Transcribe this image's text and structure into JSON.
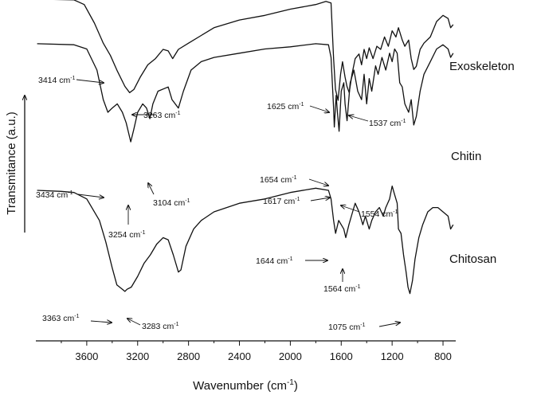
{
  "chart_data": {
    "type": "line",
    "title": "",
    "xlabel": "Wavenumber (cm-1)",
    "xlabel_main": "Wavenumber (cm",
    "xlabel_sup": "-1",
    "xlabel_close": ")",
    "ylabel": "Transmitance (a.u.)",
    "xlim": [
      4000,
      700
    ],
    "x_reversed": true,
    "xticks": [
      3600,
      3200,
      2800,
      2400,
      2000,
      1600,
      1200,
      800
    ],
    "grid": false,
    "legend": "series labels at right end of curves",
    "unit_sup": "-1",
    "series": [
      {
        "name": "Exoskeleton",
        "points": [
          [
            3990,
            0.985
          ],
          [
            3700,
            0.98
          ],
          [
            3620,
            0.95
          ],
          [
            3540,
            0.83
          ],
          [
            3470,
            0.7
          ],
          [
            3414,
            0.62
          ],
          [
            3360,
            0.52
          ],
          [
            3300,
            0.42
          ],
          [
            3263,
            0.38
          ],
          [
            3230,
            0.4
          ],
          [
            3180,
            0.48
          ],
          [
            3120,
            0.56
          ],
          [
            3060,
            0.6
          ],
          [
            3000,
            0.66
          ],
          [
            2960,
            0.65
          ],
          [
            2925,
            0.6
          ],
          [
            2880,
            0.66
          ],
          [
            2800,
            0.7
          ],
          [
            2700,
            0.75
          ],
          [
            2600,
            0.8
          ],
          [
            2400,
            0.85
          ],
          [
            2200,
            0.88
          ],
          [
            2000,
            0.92
          ],
          [
            1800,
            0.95
          ],
          [
            1720,
            0.97
          ],
          [
            1680,
            0.96
          ],
          [
            1660,
            0.6
          ],
          [
            1645,
            0.4
          ],
          [
            1625,
            0.33
          ],
          [
            1605,
            0.5
          ],
          [
            1590,
            0.58
          ],
          [
            1570,
            0.48
          ],
          [
            1555,
            0.42
          ],
          [
            1537,
            0.38
          ],
          [
            1515,
            0.5
          ],
          [
            1490,
            0.6
          ],
          [
            1460,
            0.63
          ],
          [
            1440,
            0.56
          ],
          [
            1420,
            0.66
          ],
          [
            1400,
            0.6
          ],
          [
            1380,
            0.67
          ],
          [
            1350,
            0.6
          ],
          [
            1320,
            0.68
          ],
          [
            1290,
            0.66
          ],
          [
            1260,
            0.74
          ],
          [
            1230,
            0.68
          ],
          [
            1200,
            0.78
          ],
          [
            1170,
            0.74
          ],
          [
            1150,
            0.8
          ],
          [
            1120,
            0.72
          ],
          [
            1100,
            0.68
          ],
          [
            1070,
            0.72
          ],
          [
            1050,
            0.6
          ],
          [
            1030,
            0.53
          ],
          [
            1010,
            0.55
          ],
          [
            980,
            0.66
          ],
          [
            950,
            0.7
          ],
          [
            900,
            0.74
          ],
          [
            850,
            0.84
          ],
          [
            800,
            0.88
          ],
          [
            760,
            0.86
          ],
          [
            740,
            0.8
          ],
          [
            720,
            0.82
          ]
        ]
      },
      {
        "name": "Chitin",
        "points": [
          [
            3990,
            0.925
          ],
          [
            3700,
            0.92
          ],
          [
            3600,
            0.9
          ],
          [
            3520,
            0.8
          ],
          [
            3470,
            0.66
          ],
          [
            3434,
            0.6
          ],
          [
            3400,
            0.62
          ],
          [
            3360,
            0.64
          ],
          [
            3320,
            0.6
          ],
          [
            3290,
            0.55
          ],
          [
            3254,
            0.46
          ],
          [
            3230,
            0.52
          ],
          [
            3200,
            0.6
          ],
          [
            3160,
            0.64
          ],
          [
            3130,
            0.62
          ],
          [
            3104,
            0.57
          ],
          [
            3080,
            0.64
          ],
          [
            3040,
            0.7
          ],
          [
            2960,
            0.72
          ],
          [
            2930,
            0.66
          ],
          [
            2880,
            0.62
          ],
          [
            2840,
            0.7
          ],
          [
            2780,
            0.8
          ],
          [
            2700,
            0.84
          ],
          [
            2600,
            0.86
          ],
          [
            2400,
            0.88
          ],
          [
            2200,
            0.9
          ],
          [
            2000,
            0.91
          ],
          [
            1800,
            0.925
          ],
          [
            1700,
            0.92
          ],
          [
            1680,
            0.86
          ],
          [
            1660,
            0.62
          ],
          [
            1654,
            0.53
          ],
          [
            1640,
            0.68
          ],
          [
            1630,
            0.6
          ],
          [
            1617,
            0.51
          ],
          [
            1600,
            0.7
          ],
          [
            1580,
            0.74
          ],
          [
            1570,
            0.64
          ],
          [
            1554,
            0.56
          ],
          [
            1530,
            0.74
          ],
          [
            1500,
            0.8
          ],
          [
            1470,
            0.7
          ],
          [
            1440,
            0.66
          ],
          [
            1420,
            0.78
          ],
          [
            1400,
            0.64
          ],
          [
            1380,
            0.76
          ],
          [
            1360,
            0.7
          ],
          [
            1330,
            0.82
          ],
          [
            1310,
            0.78
          ],
          [
            1280,
            0.86
          ],
          [
            1250,
            0.8
          ],
          [
            1220,
            0.88
          ],
          [
            1200,
            0.84
          ],
          [
            1180,
            0.9
          ],
          [
            1160,
            0.88
          ],
          [
            1140,
            0.74
          ],
          [
            1120,
            0.72
          ],
          [
            1100,
            0.64
          ],
          [
            1070,
            0.6
          ],
          [
            1050,
            0.66
          ],
          [
            1030,
            0.54
          ],
          [
            1010,
            0.58
          ],
          [
            980,
            0.7
          ],
          [
            950,
            0.78
          ],
          [
            900,
            0.84
          ],
          [
            850,
            0.9
          ],
          [
            800,
            0.92
          ],
          [
            760,
            0.9
          ],
          [
            740,
            0.86
          ],
          [
            720,
            0.88
          ]
        ]
      },
      {
        "name": "Chitosan",
        "points": [
          [
            3990,
            0.8
          ],
          [
            3800,
            0.795
          ],
          [
            3700,
            0.79
          ],
          [
            3600,
            0.76
          ],
          [
            3500,
            0.66
          ],
          [
            3450,
            0.56
          ],
          [
            3400,
            0.44
          ],
          [
            3363,
            0.36
          ],
          [
            3320,
            0.34
          ],
          [
            3300,
            0.33
          ],
          [
            3283,
            0.34
          ],
          [
            3250,
            0.35
          ],
          [
            3200,
            0.4
          ],
          [
            3150,
            0.46
          ],
          [
            3100,
            0.5
          ],
          [
            3050,
            0.55
          ],
          [
            3000,
            0.58
          ],
          [
            2960,
            0.57
          ],
          [
            2920,
            0.5
          ],
          [
            2880,
            0.42
          ],
          [
            2860,
            0.43
          ],
          [
            2820,
            0.54
          ],
          [
            2760,
            0.62
          ],
          [
            2700,
            0.66
          ],
          [
            2600,
            0.7
          ],
          [
            2400,
            0.74
          ],
          [
            2200,
            0.76
          ],
          [
            2000,
            0.79
          ],
          [
            1800,
            0.81
          ],
          [
            1700,
            0.8
          ],
          [
            1680,
            0.76
          ],
          [
            1660,
            0.66
          ],
          [
            1644,
            0.6
          ],
          [
            1620,
            0.66
          ],
          [
            1600,
            0.64
          ],
          [
            1580,
            0.62
          ],
          [
            1564,
            0.58
          ],
          [
            1540,
            0.64
          ],
          [
            1510,
            0.7
          ],
          [
            1490,
            0.74
          ],
          [
            1460,
            0.7
          ],
          [
            1430,
            0.64
          ],
          [
            1410,
            0.68
          ],
          [
            1380,
            0.62
          ],
          [
            1360,
            0.66
          ],
          [
            1330,
            0.7
          ],
          [
            1300,
            0.72
          ],
          [
            1270,
            0.68
          ],
          [
            1250,
            0.72
          ],
          [
            1220,
            0.76
          ],
          [
            1200,
            0.82
          ],
          [
            1180,
            0.78
          ],
          [
            1160,
            0.74
          ],
          [
            1150,
            0.62
          ],
          [
            1130,
            0.6
          ],
          [
            1110,
            0.5
          ],
          [
            1090,
            0.42
          ],
          [
            1075,
            0.35
          ],
          [
            1060,
            0.32
          ],
          [
            1040,
            0.38
          ],
          [
            1020,
            0.48
          ],
          [
            990,
            0.58
          ],
          [
            960,
            0.64
          ],
          [
            920,
            0.7
          ],
          [
            880,
            0.72
          ],
          [
            840,
            0.72
          ],
          [
            800,
            0.7
          ],
          [
            760,
            0.68
          ],
          [
            740,
            0.62
          ],
          [
            720,
            0.64
          ]
        ]
      }
    ],
    "annotations": [
      {
        "text": "3414 cm",
        "series": "Exoskeleton",
        "x": 3414
      },
      {
        "text": "3263 cm",
        "series": "Exoskeleton",
        "x": 3263
      },
      {
        "text": "1625 cm",
        "series": "Exoskeleton",
        "x": 1625
      },
      {
        "text": "1537 cm",
        "series": "Exoskeleton",
        "x": 1537
      },
      {
        "text": "3434 cm",
        "series": "Chitin",
        "x": 3434
      },
      {
        "text": "3254 cm",
        "series": "Chitin",
        "x": 3254
      },
      {
        "text": "3104 cm",
        "series": "Chitin",
        "x": 3104
      },
      {
        "text": "1654 cm",
        "series": "Chitin",
        "x": 1654
      },
      {
        "text": "1617 cm",
        "series": "Chitin",
        "x": 1617
      },
      {
        "text": "1554 cm",
        "series": "Chitin",
        "x": 1554
      },
      {
        "text": "1644 cm",
        "series": "Chitosan",
        "x": 1644
      },
      {
        "text": "1564 cm",
        "series": "Chitosan",
        "x": 1564
      },
      {
        "text": "3363 cm",
        "series": "Chitosan",
        "x": 3363
      },
      {
        "text": "3283 cm",
        "series": "Chitosan",
        "x": 3283
      },
      {
        "text": "1075 cm",
        "series": "Chitosan",
        "x": 1075
      }
    ]
  }
}
